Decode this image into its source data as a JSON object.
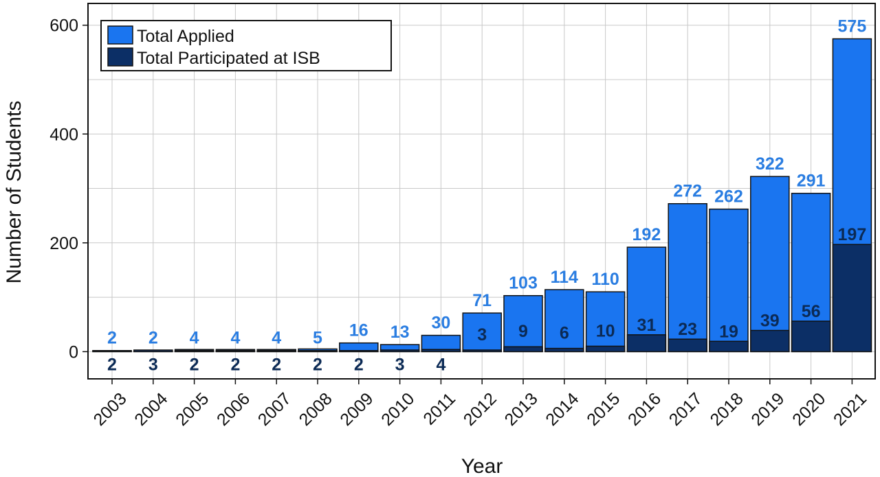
{
  "chart_data": {
    "type": "bar",
    "xlabel": "Year",
    "ylabel": "Number of Students",
    "ylim": [
      -50,
      640
    ],
    "yticks": [
      0,
      200,
      400,
      600
    ],
    "grid": true,
    "legend_placement": "top-left",
    "categories": [
      "2003",
      "2004",
      "2005",
      "2006",
      "2007",
      "2008",
      "2009",
      "2010",
      "2011",
      "2012",
      "2013",
      "2014",
      "2015",
      "2016",
      "2017",
      "2018",
      "2019",
      "2020",
      "2021"
    ],
    "series": [
      {
        "name": "Total Applied",
        "color": "#1a75f0",
        "label_color": "#2a7de1",
        "values": [
          2,
          2,
          4,
          4,
          4,
          5,
          16,
          13,
          30,
          71,
          103,
          114,
          110,
          192,
          272,
          262,
          322,
          291,
          575
        ]
      },
      {
        "name": "Total Participated at ISB",
        "color": "#0c2f66",
        "label_color": "#0b2a55",
        "values": [
          2,
          3,
          2,
          2,
          2,
          2,
          2,
          3,
          4,
          3,
          9,
          6,
          10,
          31,
          23,
          19,
          39,
          56,
          197
        ]
      }
    ]
  }
}
